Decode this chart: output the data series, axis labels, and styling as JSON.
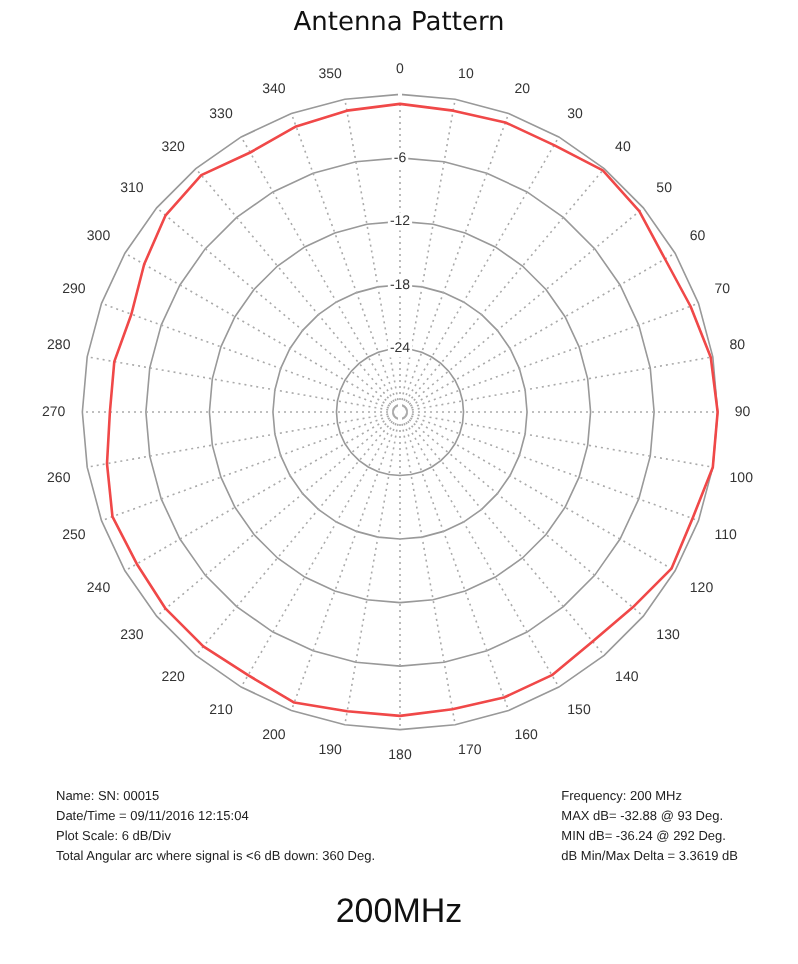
{
  "chart_data": {
    "type": "radar",
    "title": "Antenna Pattern",
    "subtitle": "200MHz",
    "categories": [
      "0",
      "10",
      "20",
      "30",
      "40",
      "50",
      "60",
      "70",
      "80",
      "90",
      "100",
      "110",
      "120",
      "130",
      "140",
      "150",
      "160",
      "170",
      "180",
      "190",
      "200",
      "210",
      "220",
      "230",
      "240",
      "250",
      "260",
      "270",
      "280",
      "290",
      "300",
      "310",
      "320",
      "330",
      "340",
      "350"
    ],
    "series": [
      {
        "color": "#f04848",
        "values": [
          -0.9,
          -1.1,
          -0.9,
          -0.9,
          -0.2,
          -0.5,
          -1.1,
          -0.8,
          -0.2,
          0,
          0,
          -0.6,
          -0.4,
          -1.3,
          -1.7,
          -1.3,
          -1.3,
          -1.5,
          -1.3,
          -1.3,
          -0.8,
          -1.3,
          -1.1,
          -1.1,
          -1.3,
          -1.1,
          -1.9,
          -2.6,
          -2.6,
          -3.0,
          -2.1,
          -1.1,
          -0.8,
          -1.7,
          -1.3,
          -1.1
        ]
      }
    ],
    "ylim": [
      -30,
      0
    ],
    "yticks": [
      -24,
      -18,
      -12,
      -6
    ],
    "grid": true,
    "legend": false,
    "marker": "none",
    "line_style": "solid",
    "annotations": [
      "Name: SN: 00015",
      "Date/Time = 09/11/2016 12:15:04",
      "Plot Scale: 6 dB/Div",
      "Total Angular arc where signal is <6 dB down: 360 Deg.",
      "Frequency: 200 MHz",
      "MAX dB= -32.88 @ 93 Deg.",
      "MIN dB= -36.24 @ 292 Deg.",
      "dB Min/Max Delta = 3.3619 dB"
    ]
  }
}
